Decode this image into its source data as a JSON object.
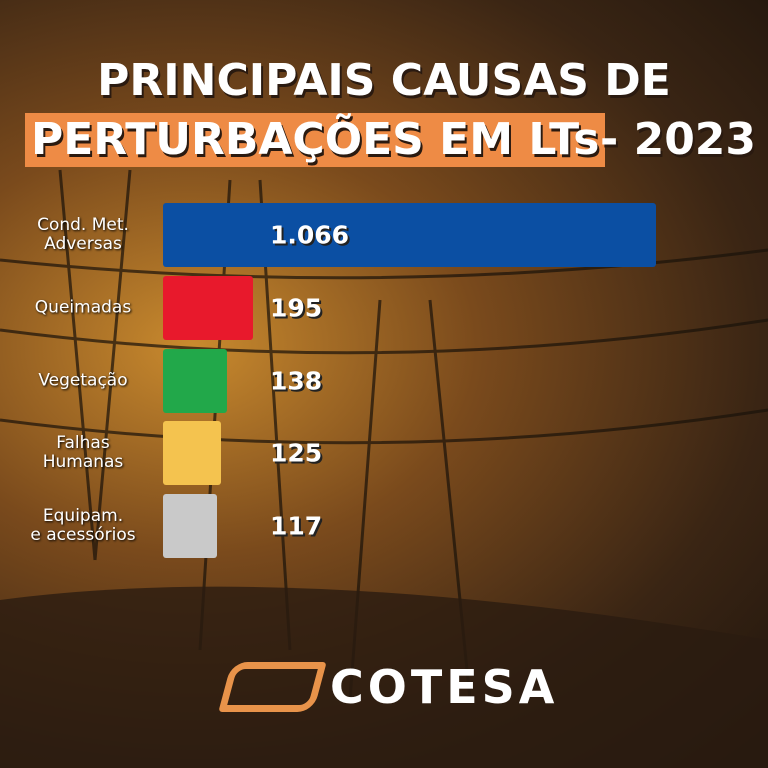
{
  "chart_data": {
    "type": "bar",
    "orientation": "horizontal",
    "title": "PRINCIPAIS CAUSAS DE",
    "title_highlight": "PERTURBAÇÕES EM LTs",
    "title_suffix": "- 2023",
    "categories": [
      "Cond. Met.\nAdversas",
      "Queimadas",
      "Vegetação",
      "Falhas\nHumanas",
      "Equipam.\ne acessórios"
    ],
    "values": [
      1066,
      195,
      138,
      125,
      117
    ],
    "value_labels": [
      "1.066",
      "195",
      "138",
      "125",
      "117"
    ],
    "colors": [
      "#0b4fa3",
      "#e8192c",
      "#22a84a",
      "#f4c34f",
      "#c9c9c9"
    ],
    "brand": "COTESA"
  }
}
